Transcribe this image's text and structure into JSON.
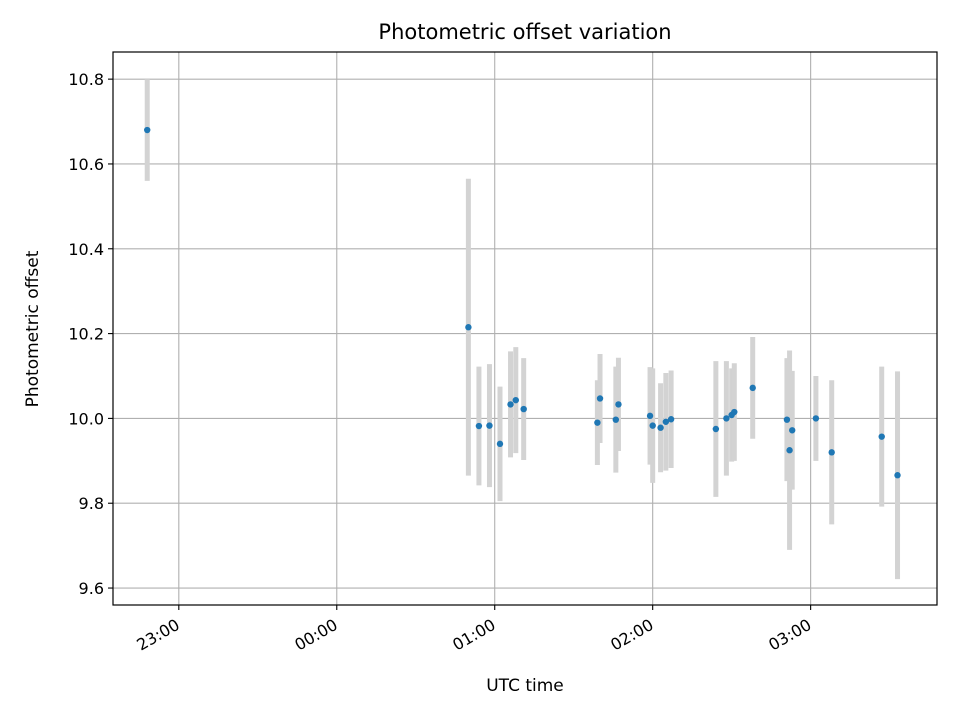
{
  "chart_data": {
    "type": "scatter",
    "title": "Photometric offset variation",
    "xlabel": "UTC time",
    "ylabel": "Photometric offset",
    "x_unit": "UTC time (HH:MM)",
    "xlim": [
      "22:35",
      "03:48"
    ],
    "ylim": [
      9.56,
      10.864
    ],
    "x_ticks": [
      "23:00",
      "00:00",
      "01:00",
      "02:00",
      "03:00"
    ],
    "y_ticks": [
      9.6,
      9.8,
      10.0,
      10.2,
      10.4,
      10.6,
      10.8
    ],
    "y_tick_labels": [
      "9.6",
      "9.8",
      "10.0",
      "10.2",
      "10.4",
      "10.6",
      "10.8"
    ],
    "grid": true,
    "marker_color": "#1f77b4",
    "errorbar_color": "#d3d3d3",
    "points": [
      {
        "x": "22:48",
        "y": 10.68,
        "err": 0.12
      },
      {
        "x": "00:50",
        "y": 10.215,
        "err": 0.35
      },
      {
        "x": "00:54",
        "y": 9.982,
        "err": 0.14
      },
      {
        "x": "00:58",
        "y": 9.983,
        "err": 0.145
      },
      {
        "x": "01:02",
        "y": 9.94,
        "err": 0.135
      },
      {
        "x": "01:06",
        "y": 10.033,
        "err": 0.125
      },
      {
        "x": "01:08",
        "y": 10.043,
        "err": 0.125
      },
      {
        "x": "01:11",
        "y": 10.022,
        "err": 0.12
      },
      {
        "x": "01:39",
        "y": 9.99,
        "err": 0.1
      },
      {
        "x": "01:40",
        "y": 10.047,
        "err": 0.105
      },
      {
        "x": "01:46",
        "y": 9.997,
        "err": 0.125
      },
      {
        "x": "01:47",
        "y": 10.033,
        "err": 0.11
      },
      {
        "x": "01:59",
        "y": 10.006,
        "err": 0.115
      },
      {
        "x": "02:00",
        "y": 9.983,
        "err": 0.135
      },
      {
        "x": "02:03",
        "y": 9.978,
        "err": 0.105
      },
      {
        "x": "02:05",
        "y": 9.992,
        "err": 0.115
      },
      {
        "x": "02:07",
        "y": 9.998,
        "err": 0.115
      },
      {
        "x": "02:24",
        "y": 9.975,
        "err": 0.16
      },
      {
        "x": "02:28",
        "y": 10.0,
        "err": 0.135
      },
      {
        "x": "02:30",
        "y": 10.008,
        "err": 0.11
      },
      {
        "x": "02:31",
        "y": 10.015,
        "err": 0.115
      },
      {
        "x": "02:38",
        "y": 10.072,
        "err": 0.12
      },
      {
        "x": "02:51",
        "y": 9.997,
        "err": 0.145
      },
      {
        "x": "02:52",
        "y": 9.925,
        "err": 0.235
      },
      {
        "x": "02:53",
        "y": 9.972,
        "err": 0.14
      },
      {
        "x": "03:02",
        "y": 10.0,
        "err": 0.1
      },
      {
        "x": "03:08",
        "y": 9.92,
        "err": 0.17
      },
      {
        "x": "03:27",
        "y": 9.957,
        "err": 0.165
      },
      {
        "x": "03:33",
        "y": 9.866,
        "err": 0.245
      }
    ]
  }
}
